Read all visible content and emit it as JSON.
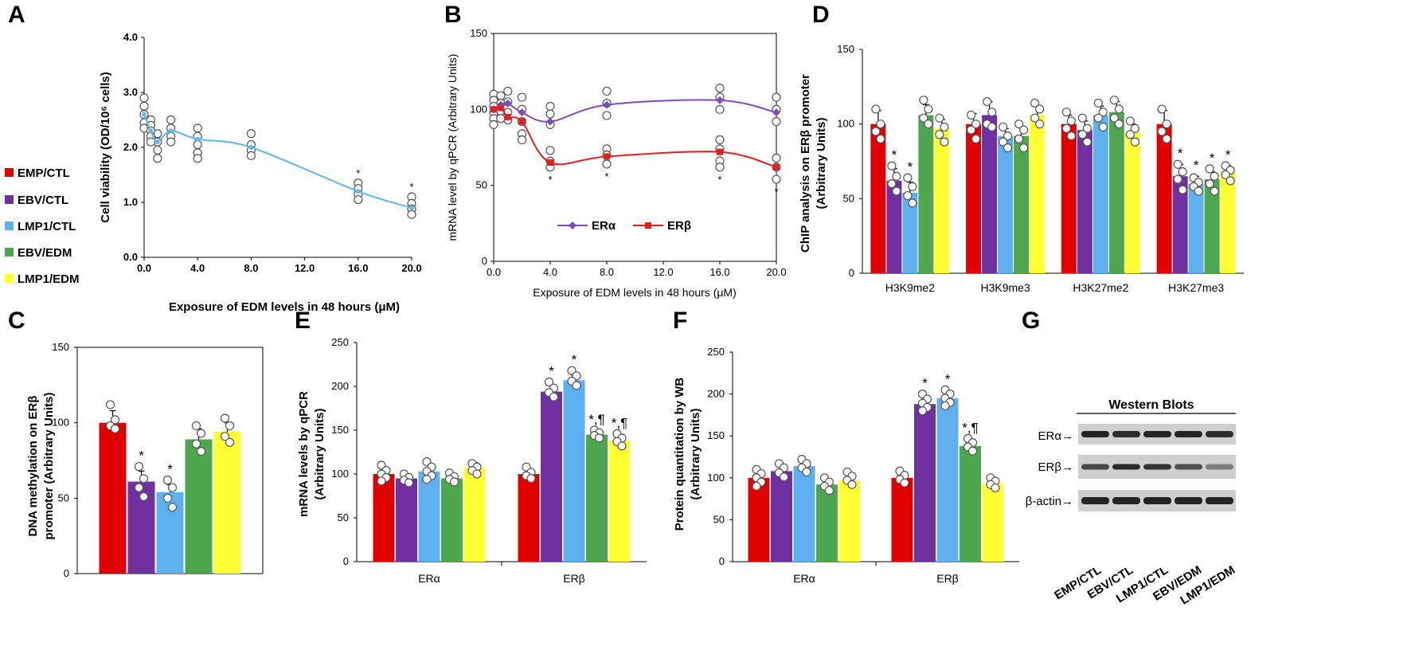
{
  "colors": {
    "EMP/CTL": "#e00000",
    "EBV/CTL": "#7030a0",
    "LMP1/CTL": "#5fb0f0",
    "EBV/EDM": "#4ea64e",
    "LMP1/EDM": "#ffff33",
    "line_a": "#5fb8e8",
    "era": "#7c4db8",
    "erb": "#e02020"
  },
  "legend": {
    "items": [
      "EMP/CTL",
      "EBV/CTL",
      "LMP1/CTL",
      "EBV/EDM",
      "LMP1/EDM"
    ]
  },
  "chart_data": [
    {
      "id": "A",
      "panel_label": "A",
      "type": "line",
      "ylabel": "Cell viability (OD/10⁶ cells)",
      "xlabel": "Exposure of EDM levels in 48 hours (μM)",
      "ylim": [
        0,
        4
      ],
      "xlim": [
        0,
        20
      ],
      "yticks": [
        "0.0",
        "1.0",
        "2.0",
        "3.0",
        "4.0"
      ],
      "xticks": [
        "0.0",
        "4.0",
        "8.0",
        "12.0",
        "16.0",
        "20.0"
      ],
      "series": [
        {
          "name": "Cell viability",
          "x": [
            0,
            0.5,
            1,
            2,
            4,
            8,
            16,
            20
          ],
          "y": [
            2.6,
            2.3,
            2.1,
            2.3,
            2.15,
            2.0,
            1.2,
            0.9
          ]
        }
      ],
      "replicates": {
        "0": [
          2.9,
          2.75,
          2.6,
          2.45,
          2.35
        ],
        "0.5": [
          2.5,
          2.4,
          2.3,
          2.2,
          2.1
        ],
        "1": [
          2.25,
          2.1,
          1.95,
          1.8
        ],
        "2": [
          2.5,
          2.35,
          2.2,
          2.1
        ],
        "4": [
          2.35,
          2.2,
          2.05,
          1.9,
          1.8
        ],
        "8": [
          2.25,
          2.05,
          1.95,
          1.85
        ],
        "16": [
          1.35,
          1.25,
          1.15,
          1.05
        ],
        "20": [
          1.1,
          0.98,
          0.88,
          0.78
        ]
      },
      "significant_x": [
        16,
        20
      ],
      "sig_label": "*"
    },
    {
      "id": "B",
      "panel_label": "B",
      "type": "line",
      "ylabel": "mRNA level by qPCR (Arbitrary Units)",
      "xlabel": "Exposure of EDM levels in 48 hours (μM)",
      "ylim": [
        0,
        150
      ],
      "xlim": [
        0,
        20
      ],
      "yticks": [
        "0",
        "50",
        "100",
        "150"
      ],
      "xticks": [
        "0.0",
        "4.0",
        "8.0",
        "12.0",
        "16.0",
        "20.0"
      ],
      "series": [
        {
          "name": "ERα",
          "x": [
            0,
            0.5,
            1,
            2,
            4,
            8,
            16,
            20
          ],
          "y": [
            100,
            103,
            104,
            98,
            92,
            103,
            106,
            98
          ]
        },
        {
          "name": "ERβ",
          "x": [
            0,
            0.5,
            1,
            2,
            4,
            8,
            16,
            20
          ],
          "y": [
            100,
            101,
            95,
            92,
            65,
            69,
            72,
            62
          ]
        }
      ],
      "replicates": {
        "0": [
          110,
          106,
          102,
          98,
          94,
          90
        ],
        "0.5": [
          109,
          104,
          99,
          94
        ],
        "1": [
          112,
          105,
          98,
          93
        ],
        "2": [
          108,
          100,
          92,
          84,
          80
        ],
        "4": [
          102,
          97,
          90,
          73,
          66,
          62
        ],
        "8": [
          112,
          104,
          96,
          74,
          70,
          64
        ],
        "16": [
          114,
          108,
          100,
          80,
          74,
          66,
          62
        ],
        "20": [
          108,
          100,
          92,
          68,
          62,
          54
        ]
      },
      "significant_x": [
        4,
        8,
        16,
        20
      ],
      "sig_label": "*"
    },
    {
      "id": "C",
      "panel_label": "C",
      "type": "bar",
      "ylabel": [
        "DNA methylation on ERβ",
        "promoter (Arbitrary Units)"
      ],
      "ylim": [
        0,
        150
      ],
      "yticks": [
        "0",
        "50",
        "100",
        "150"
      ],
      "categories": [
        ""
      ],
      "series": [
        {
          "name": "EMP/CTL",
          "values": [
            100
          ],
          "errors": [
            8
          ],
          "points": [
            [
              112,
              102,
              98,
              96
            ]
          ],
          "sig": [
            ""
          ]
        },
        {
          "name": "EBV/CTL",
          "values": [
            61
          ],
          "errors": [
            7
          ],
          "points": [
            [
              71,
              63,
              57,
              51
            ]
          ],
          "sig": [
            "*"
          ]
        },
        {
          "name": "LMP1/CTL",
          "values": [
            54
          ],
          "errors": [
            5
          ],
          "points": [
            [
              62,
              57,
              50,
              44
            ]
          ],
          "sig": [
            "*"
          ]
        },
        {
          "name": "EBV/EDM",
          "values": [
            89
          ],
          "errors": [
            7
          ],
          "points": [
            [
              98,
              93,
              86,
              81
            ]
          ],
          "sig": [
            ""
          ]
        },
        {
          "name": "LMP1/EDM",
          "values": [
            94
          ],
          "errors": [
            6
          ],
          "points": [
            [
              103,
              98,
              91,
              87
            ]
          ],
          "sig": [
            ""
          ]
        }
      ]
    },
    {
      "id": "D",
      "panel_label": "D",
      "type": "bar",
      "ylabel": [
        "ChIP analysis on ERβ promoter",
        "(Arbitrary Units)"
      ],
      "ylim": [
        0,
        150
      ],
      "yticks": [
        "0",
        "50",
        "100",
        "150"
      ],
      "categories": [
        "H3K9me2",
        "H3K9me3",
        "H3K27me2",
        "H3K27me3"
      ],
      "series": [
        {
          "name": "EMP/CTL",
          "values": [
            100,
            100,
            100,
            100
          ],
          "errors": [
            9,
            7,
            6,
            9
          ],
          "points": [
            [
              110,
              100,
              95,
              90
            ],
            [
              106,
              100,
              96,
              90
            ],
            [
              108,
              102,
              97,
              92
            ],
            [
              110,
              100,
              95,
              90
            ]
          ],
          "sig": [
            "",
            "",
            "",
            ""
          ]
        },
        {
          "name": "EBV/CTL",
          "values": [
            62,
            106,
            96,
            65
          ],
          "errors": [
            8,
            9,
            6,
            8
          ],
          "points": [
            [
              72,
              65,
              60,
              55
            ],
            [
              115,
              108,
              100,
              98
            ],
            [
              104,
              97,
              93,
              88
            ],
            [
              73,
              68,
              63,
              56
            ]
          ],
          "sig": [
            "*",
            "",
            "",
            "*"
          ]
        },
        {
          "name": "LMP1/CTL",
          "values": [
            54,
            92,
            106,
            60
          ],
          "errors": [
            7,
            5,
            6,
            5
          ],
          "points": [
            [
              64,
              58,
              52,
              47
            ],
            [
              98,
              92,
              88,
              84
            ],
            [
              114,
              108,
              104,
              98
            ],
            [
              64,
              61,
              58,
              55
            ]
          ],
          "sig": [
            "*",
            "",
            "",
            "*"
          ]
        },
        {
          "name": "EBV/EDM",
          "values": [
            106,
            92,
            108,
            63
          ],
          "errors": [
            7,
            6,
            7,
            5
          ],
          "points": [
            [
              116,
              110,
              104,
              100
            ],
            [
              100,
              96,
              90,
              84
            ],
            [
              116,
              110,
              104,
              100
            ],
            [
              70,
              65,
              60,
              55
            ]
          ],
          "sig": [
            "",
            "",
            "",
            "*"
          ]
        },
        {
          "name": "LMP1/EDM",
          "values": [
            97,
            106,
            95,
            68
          ],
          "errors": [
            6,
            6,
            5,
            4
          ],
          "points": [
            [
              104,
              98,
              93,
              88
            ],
            [
              114,
              110,
              104,
              100
            ],
            [
              102,
              97,
              93,
              88
            ],
            [
              72,
              69,
              66,
              62
            ]
          ],
          "sig": [
            "",
            "",
            "",
            "*"
          ]
        }
      ]
    },
    {
      "id": "E",
      "panel_label": "E",
      "type": "bar",
      "ylabel": [
        "mRNA levels by qPCR",
        "(Arbitrary Units)"
      ],
      "ylim": [
        0,
        250
      ],
      "yticks": [
        "0",
        "50",
        "100",
        "150",
        "200",
        "250"
      ],
      "categories": [
        "ERα",
        "ERβ"
      ],
      "series": [
        {
          "name": "EMP/CTL",
          "values": [
            100,
            100
          ],
          "errors": [
            8,
            6
          ],
          "points": [
            [
              110,
              104,
              100,
              96,
              92
            ],
            [
              108,
              102,
              98,
              95
            ]
          ],
          "sig": [
            "",
            ""
          ]
        },
        {
          "name": "EBV/CTL",
          "values": [
            95,
            194
          ],
          "errors": [
            5,
            7
          ],
          "points": [
            [
              100,
              96,
              93,
              90
            ],
            [
              205,
              198,
              193,
              188
            ]
          ],
          "sig": [
            "",
            "*"
          ]
        },
        {
          "name": "LMP1/CTL",
          "values": [
            103,
            207
          ],
          "errors": [
            9,
            6
          ],
          "points": [
            [
              114,
              108,
              103,
              98,
              94
            ],
            [
              218,
              212,
              206,
              201
            ]
          ],
          "sig": [
            "",
            "*"
          ]
        },
        {
          "name": "EBV/EDM",
          "values": [
            95,
            145
          ],
          "errors": [
            6,
            5
          ],
          "points": [
            [
              101,
              97,
              94,
              91
            ],
            [
              150,
              147,
              144,
              141
            ]
          ],
          "sig": [
            "",
            "*,¶"
          ]
        },
        {
          "name": "LMP1/EDM",
          "values": [
            107,
            138
          ],
          "errors": [
            6,
            6
          ],
          "points": [
            [
              112,
              108,
              104,
              100
            ],
            [
              146,
              141,
              137,
              132
            ]
          ],
          "sig": [
            "",
            "*,¶"
          ]
        }
      ]
    },
    {
      "id": "F",
      "panel_label": "F",
      "type": "bar",
      "ylabel": [
        "Protein quantitation by WB",
        "(Arbitrary Units)"
      ],
      "ylim": [
        0,
        250
      ],
      "yticks": [
        "0",
        "50",
        "100",
        "150",
        "200",
        "250"
      ],
      "categories": [
        "ERα",
        "ERβ"
      ],
      "series": [
        {
          "name": "EMP/CTL",
          "values": [
            100,
            100
          ],
          "errors": [
            8,
            6
          ],
          "points": [
            [
              110,
              105,
              100,
              95,
              90
            ],
            [
              108,
              103,
              98,
              94
            ]
          ],
          "sig": [
            "",
            ""
          ]
        },
        {
          "name": "EBV/CTL",
          "values": [
            108,
            188
          ],
          "errors": [
            7,
            7
          ],
          "points": [
            [
              117,
              112,
              106,
              101
            ],
            [
              200,
              194,
              189,
              184,
              180
            ]
          ],
          "sig": [
            "",
            "*"
          ]
        },
        {
          "name": "LMP1/CTL",
          "values": [
            114,
            195
          ],
          "errors": [
            7,
            6
          ],
          "points": [
            [
              122,
              117,
              112,
              107
            ],
            [
              205,
              200,
              195,
              190,
              186
            ]
          ],
          "sig": [
            "",
            "*"
          ]
        },
        {
          "name": "EBV/EDM",
          "values": [
            92,
            138
          ],
          "errors": [
            6,
            6
          ],
          "points": [
            [
              100,
              95,
              90,
              85
            ],
            [
              147,
              142,
              137,
              132
            ]
          ],
          "sig": [
            "",
            "*,¶"
          ]
        },
        {
          "name": "LMP1/EDM",
          "values": [
            97,
            93
          ],
          "errors": [
            6,
            5
          ],
          "points": [
            [
              107,
              102,
              97,
              92
            ],
            [
              100,
              96,
              92,
              88
            ]
          ],
          "sig": [
            "",
            ""
          ]
        }
      ]
    }
  ],
  "panelG": {
    "panel_label": "G",
    "title": "Western Blots",
    "rows": [
      "ERα→",
      "ERβ→",
      "β-actin→"
    ],
    "lanes": [
      "EMP/CTL",
      "EBV/CTL",
      "LMP1/CTL",
      "EBV/EDM",
      "LMP1/EDM"
    ]
  }
}
